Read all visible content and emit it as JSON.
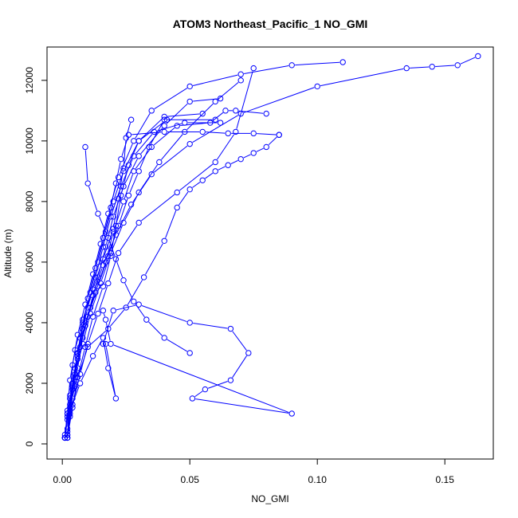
{
  "chart_data": {
    "type": "scatter",
    "title": "ATOM3 Northeast_Pacific_1 NO_GMI",
    "xlabel": "NO_GMI",
    "ylabel": "Altitude (m)",
    "xlim": [
      -0.006,
      0.169
    ],
    "ylim": [
      -500,
      13100
    ],
    "xticks": [
      0.0,
      0.05,
      0.1,
      0.15
    ],
    "xtick_labels": [
      "0.00",
      "0.05",
      "0.10",
      "0.15"
    ],
    "yticks": [
      0,
      2000,
      4000,
      6000,
      8000,
      10000,
      12000
    ],
    "ytick_labels": [
      "0",
      "2000",
      "4000",
      "6000",
      "8000",
      "10000",
      "12000"
    ],
    "grid": false,
    "color": "#0000ff",
    "marker": "open-circle",
    "series": [
      {
        "x": [
          0.002,
          0.003,
          0.004,
          0.006,
          0.008,
          0.01,
          0.013,
          0.016,
          0.019,
          0.021,
          0.023,
          0.026,
          0.04,
          0.055,
          0.065,
          0.075,
          0.085
        ],
        "y": [
          200,
          900,
          1800,
          2800,
          3800,
          4800,
          5800,
          6800,
          7800,
          8600,
          9400,
          10200,
          10300,
          10300,
          10250,
          10250,
          10200
        ]
      },
      {
        "x": [
          0.001,
          0.002,
          0.004,
          0.006,
          0.009,
          0.013,
          0.017,
          0.02,
          0.024,
          0.028,
          0.035,
          0.045,
          0.058,
          0.064,
          0.068,
          0.08
        ],
        "y": [
          200,
          1000,
          2000,
          3000,
          4000,
          5000,
          6000,
          7000,
          8000,
          9000,
          9800,
          10500,
          10600,
          11000,
          11000,
          10900
        ]
      },
      {
        "x": [
          0.002,
          0.003,
          0.005,
          0.007,
          0.01,
          0.014,
          0.018,
          0.022,
          0.026,
          0.03,
          0.034,
          0.04,
          0.06
        ],
        "y": [
          300,
          1200,
          2200,
          3200,
          4200,
          5200,
          6200,
          7200,
          8200,
          9000,
          9800,
          10700,
          10700
        ]
      },
      {
        "x": [
          0.001,
          0.002,
          0.003,
          0.005,
          0.008,
          0.012,
          0.016,
          0.02,
          0.022,
          0.024,
          0.025,
          0.027
        ],
        "y": [
          200,
          1100,
          2100,
          3100,
          4100,
          5100,
          6100,
          7100,
          8100,
          9100,
          10100,
          10700
        ]
      },
      {
        "x": [
          0.002,
          0.004,
          0.006,
          0.008,
          0.011,
          0.014,
          0.017,
          0.02,
          0.024,
          0.03,
          0.04,
          0.05,
          0.062
        ],
        "y": [
          400,
          1500,
          2500,
          3500,
          4500,
          5500,
          6500,
          7500,
          8500,
          9500,
          10500,
          11300,
          11400
        ]
      },
      {
        "x": [
          0.001,
          0.002,
          0.003,
          0.004,
          0.006,
          0.009,
          0.012,
          0.015,
          0.018,
          0.022,
          0.028,
          0.035,
          0.05,
          0.07,
          0.09,
          0.11
        ],
        "y": [
          200,
          800,
          1600,
          2600,
          3600,
          4600,
          5600,
          6600,
          7600,
          8800,
          10000,
          11000,
          11800,
          12200,
          12500,
          12600
        ]
      },
      {
        "x": [
          0.002,
          0.004,
          0.007,
          0.01,
          0.014,
          0.018,
          0.022,
          0.03,
          0.045,
          0.06,
          0.068,
          0.075
        ],
        "y": [
          300,
          1300,
          2300,
          3300,
          4300,
          5300,
          6300,
          7300,
          8300,
          9300,
          10300,
          12400
        ]
      },
      {
        "x": [
          0.001,
          0.002,
          0.004,
          0.006,
          0.009,
          0.012,
          0.016,
          0.021,
          0.027,
          0.035,
          0.05,
          0.07,
          0.1,
          0.135,
          0.145,
          0.155,
          0.163
        ],
        "y": [
          200,
          900,
          1900,
          2900,
          3900,
          4900,
          5900,
          6900,
          7900,
          8900,
          9900,
          10900,
          11800,
          12400,
          12450,
          12500,
          12800
        ]
      },
      {
        "x": [
          0.002,
          0.003,
          0.005,
          0.007,
          0.01,
          0.013,
          0.016,
          0.019,
          0.023,
          0.028,
          0.036,
          0.048,
          0.062
        ],
        "y": [
          500,
          1500,
          2500,
          3500,
          4500,
          5500,
          6500,
          7500,
          8500,
          9500,
          10300,
          10600,
          10600
        ]
      },
      {
        "x": [
          0.002,
          0.004,
          0.006,
          0.009,
          0.012,
          0.016,
          0.019,
          0.021,
          0.023,
          0.026,
          0.03,
          0.041
        ],
        "y": [
          200,
          1200,
          2200,
          3200,
          4200,
          5200,
          6200,
          7200,
          8200,
          9200,
          10000,
          10700
        ]
      },
      {
        "x": [
          0.001,
          0.003,
          0.005,
          0.008,
          0.011,
          0.015,
          0.019,
          0.024,
          0.03,
          0.038,
          0.048,
          0.06,
          0.07
        ],
        "y": [
          300,
          1300,
          2300,
          3300,
          4300,
          5300,
          6300,
          7300,
          8300,
          9300,
          10300,
          11300,
          12000
        ]
      },
      {
        "x": [
          0.002,
          0.003,
          0.004,
          0.006,
          0.008,
          0.011,
          0.014,
          0.017,
          0.02,
          0.024,
          0.03,
          0.04,
          0.055
        ],
        "y": [
          200,
          1000,
          2000,
          3000,
          4000,
          5000,
          6000,
          7000,
          8000,
          9000,
          10000,
          10800,
          10900
        ]
      },
      {
        "x": [
          0.001,
          0.002,
          0.005,
          0.01,
          0.018,
          0.025,
          0.032,
          0.04,
          0.045,
          0.05,
          0.055,
          0.06,
          0.065,
          0.07,
          0.075,
          0.08,
          0.085
        ],
        "y": [
          200,
          1000,
          1900,
          3200,
          3800,
          4500,
          5500,
          6700,
          7800,
          8400,
          8700,
          9000,
          9200,
          9400,
          9600,
          9800,
          10200
        ]
      },
      {
        "x": [
          0.003,
          0.007,
          0.012,
          0.016,
          0.018,
          0.021,
          0.017
        ],
        "y": [
          1100,
          2000,
          2900,
          3500,
          2500,
          1500,
          3300
        ]
      },
      {
        "x": [
          0.016,
          0.02,
          0.03,
          0.05,
          0.066,
          0.073,
          0.066,
          0.056,
          0.051,
          0.09,
          0.019,
          0.017,
          0.016
        ],
        "y": [
          3300,
          4400,
          4600,
          4000,
          3800,
          3000,
          2100,
          1800,
          1500,
          1000,
          3300,
          4100,
          4400
        ]
      },
      {
        "x": [
          0.009,
          0.01,
          0.014,
          0.018,
          0.021,
          0.024,
          0.028,
          0.033,
          0.04,
          0.05
        ],
        "y": [
          9800,
          8600,
          7600,
          6800,
          6100,
          5400,
          4700,
          4100,
          3500,
          3000
        ]
      }
    ]
  }
}
